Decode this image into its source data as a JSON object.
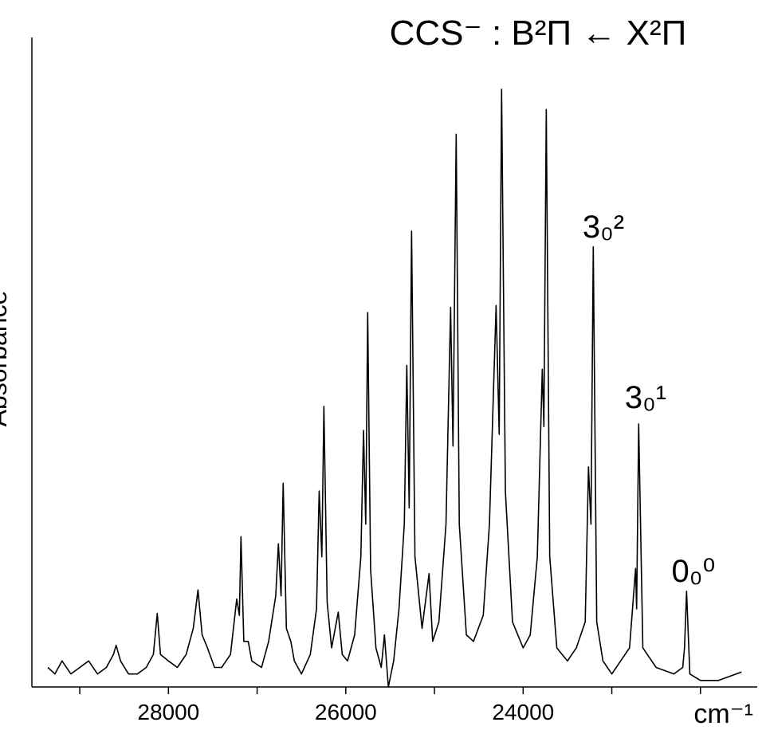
{
  "chart_data": {
    "type": "line",
    "title": "CCS⁻ : B²Π ← X²Π",
    "y_label": "Absorbance",
    "x_label": "cm⁻¹",
    "xlim": [
      29540,
      21360
    ],
    "ylim": [
      0,
      1
    ],
    "xticks": [
      28000,
      26000,
      24000
    ],
    "xminor_ticks": [
      29000,
      27000,
      25000,
      23000,
      22000
    ],
    "color": "#000000",
    "annotations": [
      "3₀²",
      "3₀¹",
      "0₀⁰"
    ],
    "x": [
      29360,
      29280,
      29200,
      29100,
      29000,
      28900,
      28800,
      28700,
      28620,
      28590,
      28540,
      28450,
      28350,
      28250,
      28170,
      28126,
      28090,
      28000,
      27900,
      27800,
      27720,
      27667,
      27620,
      27560,
      27480,
      27400,
      27300,
      27230,
      27200,
      27182,
      27150,
      27100,
      27060,
      26950,
      26870,
      26790,
      26760,
      26730,
      26706,
      26670,
      26620,
      26580,
      26500,
      26400,
      26330,
      26300,
      26270,
      26247,
      26210,
      26160,
      26085,
      26040,
      25980,
      25900,
      25830,
      25800,
      25775,
      25753,
      25720,
      25660,
      25600,
      25564,
      25520,
      25460,
      25400,
      25340,
      25312,
      25285,
      25258,
      25220,
      25140,
      25061,
      25020,
      24950,
      24870,
      24818,
      24791,
      24755,
      24720,
      24640,
      24560,
      24450,
      24380,
      24305,
      24270,
      24243,
      24200,
      24120,
      24000,
      23920,
      23840,
      23784,
      23766,
      23739,
      23700,
      23620,
      23500,
      23400,
      23300,
      23263,
      23235,
      23209,
      23170,
      23100,
      23000,
      22900,
      22800,
      22732,
      22720,
      22697,
      22650,
      22500,
      22300,
      22200,
      22180,
      22157,
      22120,
      22000,
      21800,
      21537
    ],
    "values": [
      0.03,
      0.02,
      0.04,
      0.02,
      0.03,
      0.04,
      0.02,
      0.03,
      0.05,
      0.064,
      0.04,
      0.02,
      0.02,
      0.03,
      0.05,
      0.113,
      0.05,
      0.04,
      0.03,
      0.05,
      0.09,
      0.149,
      0.08,
      0.06,
      0.03,
      0.03,
      0.05,
      0.135,
      0.11,
      0.231,
      0.07,
      0.07,
      0.04,
      0.03,
      0.07,
      0.14,
      0.22,
      0.14,
      0.313,
      0.09,
      0.07,
      0.04,
      0.02,
      0.05,
      0.12,
      0.301,
      0.2,
      0.431,
      0.13,
      0.06,
      0.115,
      0.05,
      0.04,
      0.08,
      0.2,
      0.394,
      0.25,
      0.575,
      0.18,
      0.06,
      0.03,
      0.08,
      0.0,
      0.04,
      0.12,
      0.25,
      0.494,
      0.275,
      0.7,
      0.2,
      0.09,
      0.174,
      0.07,
      0.1,
      0.25,
      0.583,
      0.37,
      0.849,
      0.25,
      0.08,
      0.07,
      0.11,
      0.25,
      0.586,
      0.388,
      0.918,
      0.3,
      0.1,
      0.06,
      0.08,
      0.2,
      0.488,
      0.4,
      0.887,
      0.2,
      0.06,
      0.04,
      0.06,
      0.1,
      0.338,
      0.25,
      0.676,
      0.1,
      0.04,
      0.02,
      0.04,
      0.06,
      0.182,
      0.12,
      0.404,
      0.06,
      0.03,
      0.02,
      0.03,
      0.06,
      0.147,
      0.02,
      0.01,
      0.01,
      0.023
    ]
  }
}
